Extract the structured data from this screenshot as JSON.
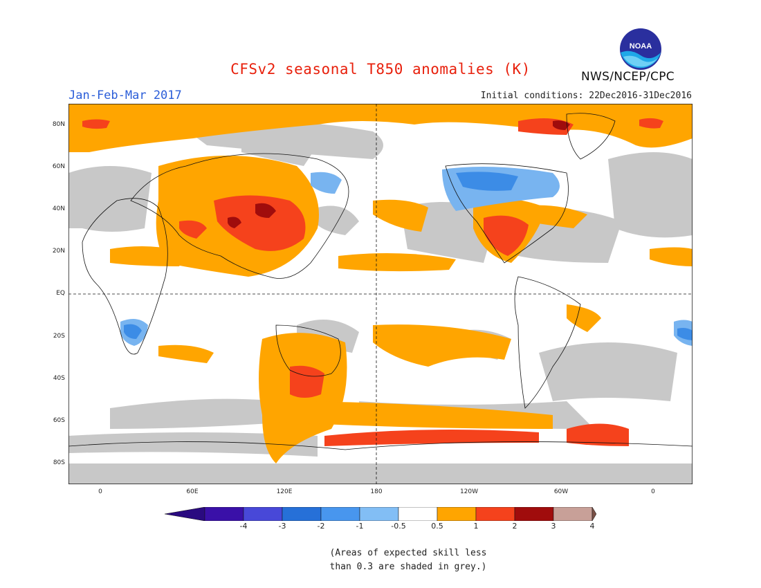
{
  "header": {
    "title": "CFSv2 seasonal T850 anomalies (K)",
    "season": "Jan-Feb-Mar 2017",
    "initial_conditions": "Initial conditions: 22Dec2016-31Dec2016",
    "agency": "NWS/NCEP/CPC",
    "logo_text": "NOAA"
  },
  "map": {
    "lat_labels": [
      "80N",
      "60N",
      "40N",
      "20N",
      "EQ",
      "20S",
      "40S",
      "60S",
      "80S"
    ],
    "lon_labels": [
      "0",
      "60E",
      "120E",
      "180",
      "120W",
      "60W",
      "0"
    ],
    "grey_meaning": "low skill",
    "colors": {
      "grey": "#c8c8c8",
      "pos_05_1": "#ffa500",
      "pos_1_2": "#f5421c",
      "pos_2_3": "#a00c0c",
      "neg_05_1": "#78b4f0",
      "neg_1_2": "#3c8ce6"
    }
  },
  "colorbar": {
    "tick_labels": [
      "-4",
      "-3",
      "-2",
      "-1",
      "-0.5",
      "0.5",
      "1",
      "2",
      "3",
      "4"
    ],
    "colors": [
      "#3a10a8",
      "#4848d8",
      "#2670d8",
      "#4896ee",
      "#82bef5",
      "#ffffff",
      "#ffa500",
      "#f5421c",
      "#a00c0c",
      "#c8a098"
    ],
    "left_arrow_color": "#2a0a80",
    "right_arrow_color": "#7a5046"
  },
  "footnote": {
    "line1": "(Areas of expected skill less",
    "line2": "than 0.3 are shaded in grey.)"
  }
}
